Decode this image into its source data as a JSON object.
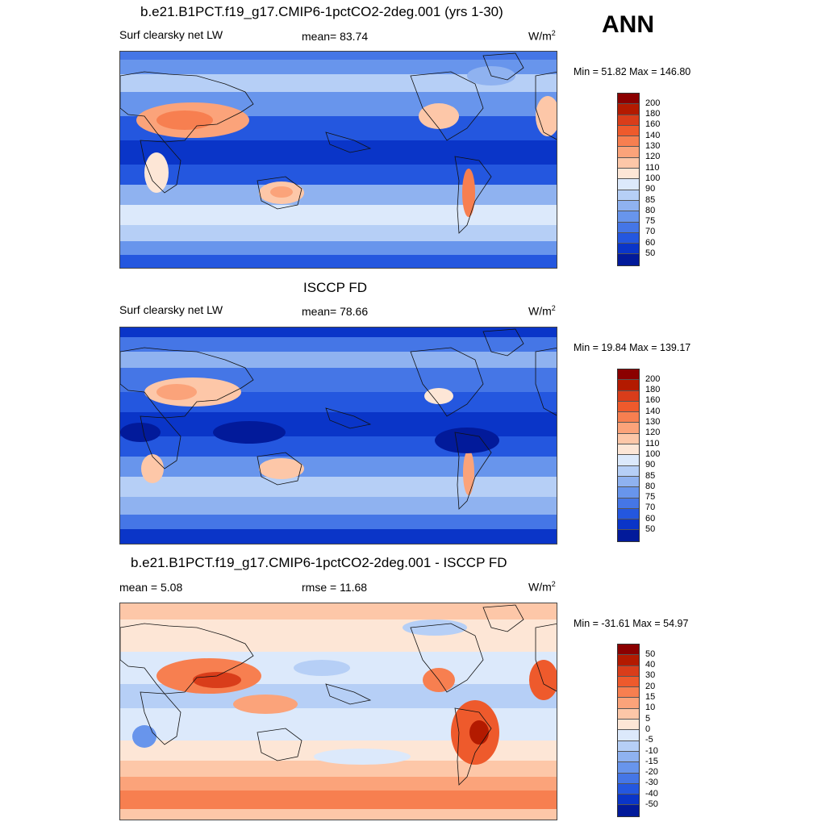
{
  "season": "ANN",
  "panels": [
    {
      "title": "b.e21.B1PCT.f19_g17.CMIP6-1pctCO2-2deg.001 (yrs 1-30)",
      "left_label": "Surf clearsky net LW",
      "center_label": "mean=  83.74",
      "units": "W/m",
      "units_exp": "2",
      "minmax": "Min =  51.82 Max = 146.80",
      "colorbar_labels": [
        "200",
        "180",
        "160",
        "140",
        "130",
        "120",
        "110",
        "100",
        "90",
        "85",
        "80",
        "75",
        "70",
        "60",
        "50"
      ],
      "colorbar_colors": [
        "#8b0000",
        "#b31a00",
        "#d93d1a",
        "#ee5a2c",
        "#f77f50",
        "#fba37a",
        "#fdc7a8",
        "#fde6d6",
        "#dce9fb",
        "#b6cff6",
        "#8fb2f0",
        "#6895ec",
        "#4576e6",
        "#2457df",
        "#0a35c8",
        "#021a9a"
      ],
      "scene": "model"
    },
    {
      "title": "ISCCP FD",
      "left_label": "Surf clearsky net LW",
      "center_label": "mean=  78.66",
      "units": "W/m",
      "units_exp": "2",
      "minmax": "Min =  19.84 Max = 139.17",
      "colorbar_labels": [
        "200",
        "180",
        "160",
        "140",
        "130",
        "120",
        "110",
        "100",
        "90",
        "85",
        "80",
        "75",
        "70",
        "60",
        "50"
      ],
      "colorbar_colors": [
        "#8b0000",
        "#b31a00",
        "#d93d1a",
        "#ee5a2c",
        "#f77f50",
        "#fba37a",
        "#fdc7a8",
        "#fde6d6",
        "#dce9fb",
        "#b6cff6",
        "#8fb2f0",
        "#6895ec",
        "#4576e6",
        "#2457df",
        "#0a35c8",
        "#021a9a"
      ],
      "scene": "obs"
    },
    {
      "title": "b.e21.B1PCT.f19_g17.CMIP6-1pctCO2-2deg.001 - ISCCP FD",
      "left_label": "mean =   5.08",
      "center_label": "rmse =  11.68",
      "units": "W/m",
      "units_exp": "2",
      "minmax": "Min = -31.61 Max =  54.97",
      "colorbar_labels": [
        "50",
        "40",
        "30",
        "20",
        "15",
        "10",
        "5",
        "0",
        "-5",
        "-10",
        "-15",
        "-20",
        "-30",
        "-40",
        "-50"
      ],
      "colorbar_colors": [
        "#8b0000",
        "#b31a00",
        "#d93d1a",
        "#ee5a2c",
        "#f77f50",
        "#fba37a",
        "#fdc7a8",
        "#fde6d6",
        "#dce9fb",
        "#b6cff6",
        "#8fb2f0",
        "#6895ec",
        "#4576e6",
        "#2457df",
        "#0a35c8",
        "#021a9a"
      ],
      "scene": "diff"
    }
  ]
}
